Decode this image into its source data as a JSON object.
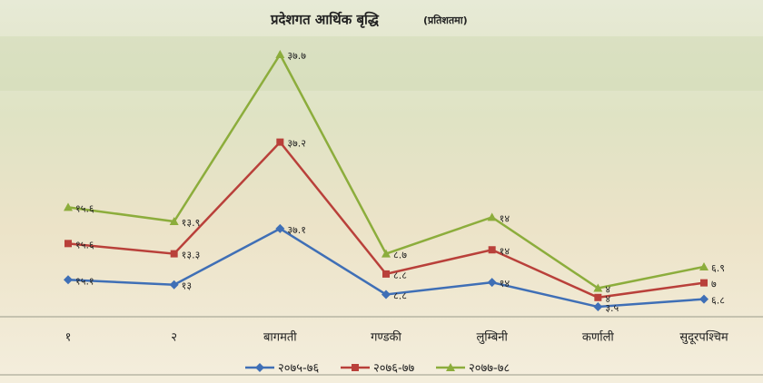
{
  "chart_data": {
    "type": "stacked-line",
    "title": "प्रदेशगत आर्थिक बृद्धि",
    "subtitle": "(प्रतिशतमा)",
    "categories": [
      "१",
      "२",
      "बागमती",
      "गण्डकी",
      "लुम्बिनी",
      "कर्णाली",
      "सुदूरपश्चिम"
    ],
    "series": [
      {
        "name": "२०७५-७६",
        "color": "#3f6fb6",
        "marker": "diamond",
        "values": [
          15.1,
          13,
          37.1,
          8.8,
          14,
          3.5,
          6.8
        ],
        "value_labels": [
          "१५.१",
          "१३",
          "३७.१",
          "८.८",
          "१४",
          "३.५",
          "६.८"
        ]
      },
      {
        "name": "२०७६-७७",
        "color": "#b9403a",
        "marker": "square",
        "values": [
          15.6,
          13.3,
          37.2,
          8.8,
          14,
          4,
          7
        ],
        "value_labels": [
          "१५.६",
          "१३.३",
          "३७.२",
          "८.८",
          "१४",
          "४",
          "७"
        ]
      },
      {
        "name": "२०७७-७८",
        "color": "#8cad3c",
        "marker": "triangle",
        "values": [
          15.6,
          13.9,
          37.7,
          8.7,
          14,
          4,
          6.9
        ],
        "value_labels": [
          "१५.६",
          "१३.९",
          "३७.७",
          "८.७",
          "१४",
          "४",
          "६.९"
        ]
      }
    ]
  }
}
